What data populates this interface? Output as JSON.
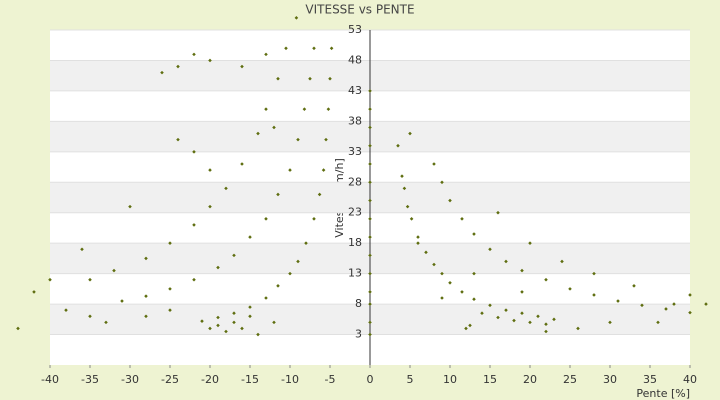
{
  "chart_data": {
    "type": "scatter",
    "title": "VITESSE vs PENTE",
    "x_label": "Pente [%]",
    "y_label": "Vitesse [km/h]",
    "color": "#5f6e10",
    "xlim": [
      -40,
      40
    ],
    "ylim": [
      -2,
      53
    ],
    "xticks": [
      -40,
      -35,
      -30,
      -25,
      -20,
      -15,
      -10,
      -5,
      0,
      5,
      10,
      15,
      20,
      25,
      30,
      35,
      40
    ],
    "yticks": [
      3,
      8,
      13,
      18,
      23,
      28,
      33,
      38,
      43,
      48,
      53
    ],
    "grid": true,
    "x": [
      -4.8,
      -5,
      -5.2,
      -5.5,
      -5.8,
      -6.3,
      -7,
      -8,
      -9,
      -10,
      -11.5,
      -13,
      -15,
      -17,
      -19,
      -21,
      -7,
      -7.5,
      -8.2,
      -9,
      -10,
      -11.5,
      -13,
      -15,
      -17,
      -19,
      -22,
      -25,
      -28,
      -31,
      -10.5,
      -11.5,
      -13,
      -14,
      -16,
      -18,
      -20,
      -22,
      -25,
      -28,
      -32,
      -35,
      -26,
      -24,
      -22,
      -20,
      -16,
      -13,
      -12,
      -22,
      -24,
      -20,
      -30,
      -36,
      -40,
      -42,
      -38,
      -35,
      -33,
      -28,
      -25,
      -20,
      -18,
      -16,
      -14,
      -12,
      -17,
      -19,
      -15,
      -44,
      -9.2,
      4,
      4.3,
      4.7,
      5.2,
      6,
      7,
      8,
      9,
      10,
      11.5,
      13,
      15,
      17,
      19,
      21,
      23,
      14,
      16,
      18,
      20,
      22,
      8,
      9,
      10,
      11.5,
      13,
      15,
      17,
      19,
      22,
      25,
      28,
      31,
      34,
      37,
      40,
      3.5,
      5,
      6,
      9,
      12,
      12.5,
      16,
      20,
      24,
      28,
      33,
      38,
      40,
      42,
      36,
      30,
      26,
      22,
      13,
      19,
      0,
      0,
      0,
      0,
      0,
      0,
      0,
      0,
      0,
      0,
      0,
      0,
      0,
      0,
      0
    ],
    "values": [
      50,
      45,
      40,
      35,
      30,
      26,
      22,
      18,
      15,
      13,
      11,
      9,
      7.5,
      6.5,
      5.8,
      5.2,
      50,
      45,
      40,
      35,
      30,
      26,
      22,
      19,
      16,
      14,
      12,
      10.5,
      9.3,
      8.5,
      50,
      45,
      40,
      36,
      31,
      27,
      24,
      21,
      18,
      15.5,
      13.5,
      12,
      46,
      47,
      49,
      48,
      47,
      49,
      37,
      33,
      35,
      30,
      24,
      17,
      12,
      10,
      7,
      6,
      5,
      6,
      7,
      4,
      3.5,
      4,
      3,
      5,
      5,
      4.5,
      6,
      4,
      55,
      29,
      27,
      24,
      22,
      19,
      16.5,
      14.5,
      13,
      11.5,
      10,
      8.8,
      7.8,
      7,
      6.5,
      6,
      5.5,
      6.5,
      5.8,
      5.3,
      5,
      4.7,
      31,
      28,
      25,
      22,
      19.5,
      17,
      15,
      13.5,
      12,
      10.5,
      9.5,
      8.5,
      7.8,
      7.2,
      6.6,
      34,
      36,
      18,
      9,
      4,
      4.5,
      23,
      18,
      15,
      13,
      11,
      8,
      9.5,
      8,
      5,
      5,
      4,
      3.5,
      13,
      10,
      3,
      5,
      8,
      10,
      13,
      16,
      19,
      22,
      25,
      28,
      31,
      34,
      37,
      40,
      43
    ]
  }
}
